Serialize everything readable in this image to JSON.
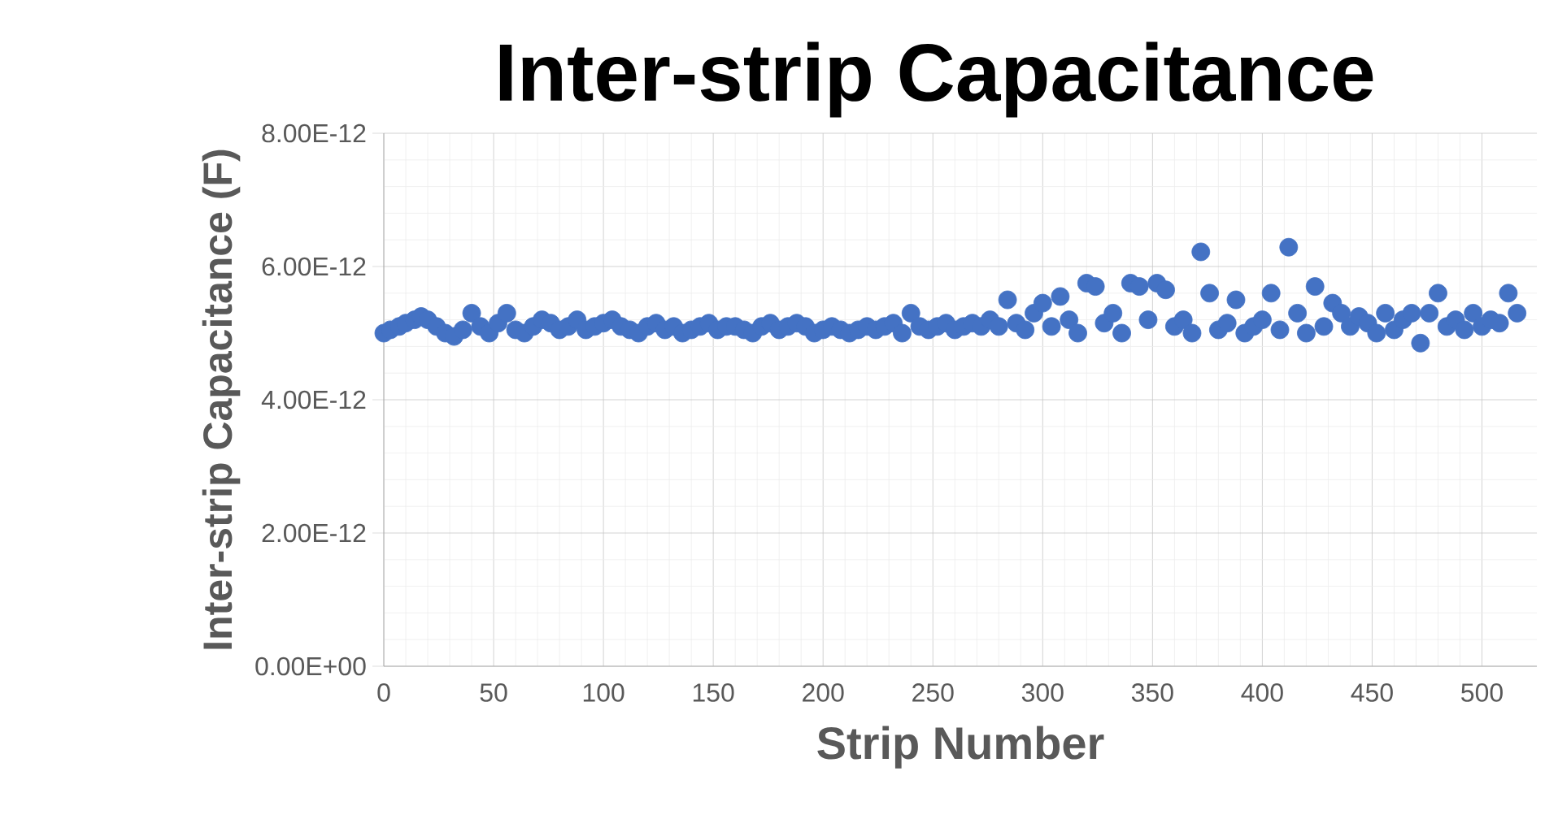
{
  "chart_data": {
    "type": "scatter",
    "title": "Inter-strip Capacitance",
    "xlabel": "Strip Number",
    "ylabel": "Inter-strip Capacitance (F)",
    "x": [
      0,
      3,
      7,
      10,
      14,
      17,
      20,
      24,
      28,
      32,
      36,
      40,
      44,
      48,
      52,
      56,
      60,
      64,
      68,
      72,
      76,
      80,
      84,
      88,
      92,
      96,
      100,
      104,
      108,
      112,
      116,
      120,
      124,
      128,
      132,
      136,
      140,
      144,
      148,
      152,
      156,
      160,
      164,
      168,
      172,
      176,
      180,
      184,
      188,
      192,
      196,
      200,
      204,
      208,
      212,
      216,
      220,
      224,
      228,
      232,
      236,
      240,
      244,
      248,
      252,
      256,
      260,
      264,
      268,
      272,
      276,
      280,
      284,
      288,
      292,
      296,
      300,
      304,
      308,
      312,
      316,
      320,
      324,
      328,
      332,
      336,
      340,
      344,
      348,
      352,
      356,
      360,
      364,
      368,
      372,
      376,
      380,
      384,
      388,
      392,
      396,
      400,
      404,
      408,
      412,
      416,
      420,
      424,
      428,
      432,
      436,
      440,
      444,
      448,
      452,
      456,
      460,
      464,
      468,
      472,
      476,
      480,
      484,
      488,
      492,
      496,
      500,
      504,
      508,
      512,
      516
    ],
    "values": [
      5e-12,
      5.05e-12,
      5.1e-12,
      5.15e-12,
      5.2e-12,
      5.25e-12,
      5.2e-12,
      5.1e-12,
      5e-12,
      4.95e-12,
      5.05e-12,
      5.3e-12,
      5.1e-12,
      5e-12,
      5.15e-12,
      5.3e-12,
      5.05e-12,
      5e-12,
      5.1e-12,
      5.2e-12,
      5.15e-12,
      5.05e-12,
      5.1e-12,
      5.2e-12,
      5.05e-12,
      5.1e-12,
      5.15e-12,
      5.2e-12,
      5.1e-12,
      5.05e-12,
      5e-12,
      5.1e-12,
      5.15e-12,
      5.05e-12,
      5.1e-12,
      5e-12,
      5.05e-12,
      5.1e-12,
      5.15e-12,
      5.05e-12,
      5.1e-12,
      5.1e-12,
      5.05e-12,
      5e-12,
      5.1e-12,
      5.15e-12,
      5.05e-12,
      5.1e-12,
      5.15e-12,
      5.1e-12,
      5e-12,
      5.05e-12,
      5.1e-12,
      5.05e-12,
      5e-12,
      5.05e-12,
      5.1e-12,
      5.05e-12,
      5.1e-12,
      5.15e-12,
      5e-12,
      5.3e-12,
      5.1e-12,
      5.05e-12,
      5.1e-12,
      5.15e-12,
      5.05e-12,
      5.1e-12,
      5.15e-12,
      5.1e-12,
      5.2e-12,
      5.1e-12,
      5.5e-12,
      5.15e-12,
      5.05e-12,
      5.3e-12,
      5.45e-12,
      5.1e-12,
      5.55e-12,
      5.2e-12,
      5e-12,
      5.75e-12,
      5.7e-12,
      5.15e-12,
      5.3e-12,
      5e-12,
      5.75e-12,
      5.7e-12,
      5.2e-12,
      5.75e-12,
      5.65e-12,
      5.1e-12,
      5.2e-12,
      5e-12,
      6.22e-12,
      5.6e-12,
      5.05e-12,
      5.15e-12,
      5.5e-12,
      5e-12,
      5.1e-12,
      5.2e-12,
      5.6e-12,
      5.05e-12,
      6.29e-12,
      5.3e-12,
      5e-12,
      5.7e-12,
      5.1e-12,
      5.45e-12,
      5.3e-12,
      5.1e-12,
      5.25e-12,
      5.15e-12,
      5e-12,
      5.3e-12,
      5.05e-12,
      5.2e-12,
      5.3e-12,
      4.85e-12,
      5.3e-12,
      5.6e-12,
      5.1e-12,
      5.2e-12,
      5.05e-12,
      5.3e-12,
      5.1e-12,
      5.2e-12,
      5.15e-12,
      5.6e-12,
      5.3e-12
    ],
    "color": "#4472c4",
    "marker": "circle",
    "grid": true,
    "xlim": [
      0,
      525
    ],
    "ylim": [
      0,
      8e-12
    ],
    "xticks": [
      0,
      50,
      100,
      150,
      200,
      250,
      300,
      350,
      400,
      450,
      500
    ],
    "yticks": [
      {
        "value": 0,
        "label": "0.00E+00"
      },
      {
        "value": 2e-12,
        "label": "2.00E-12"
      },
      {
        "value": 4e-12,
        "label": "4.00E-12"
      },
      {
        "value": 6e-12,
        "label": "6.00E-12"
      },
      {
        "value": 8e-12,
        "label": "8.00E-12"
      }
    ]
  }
}
